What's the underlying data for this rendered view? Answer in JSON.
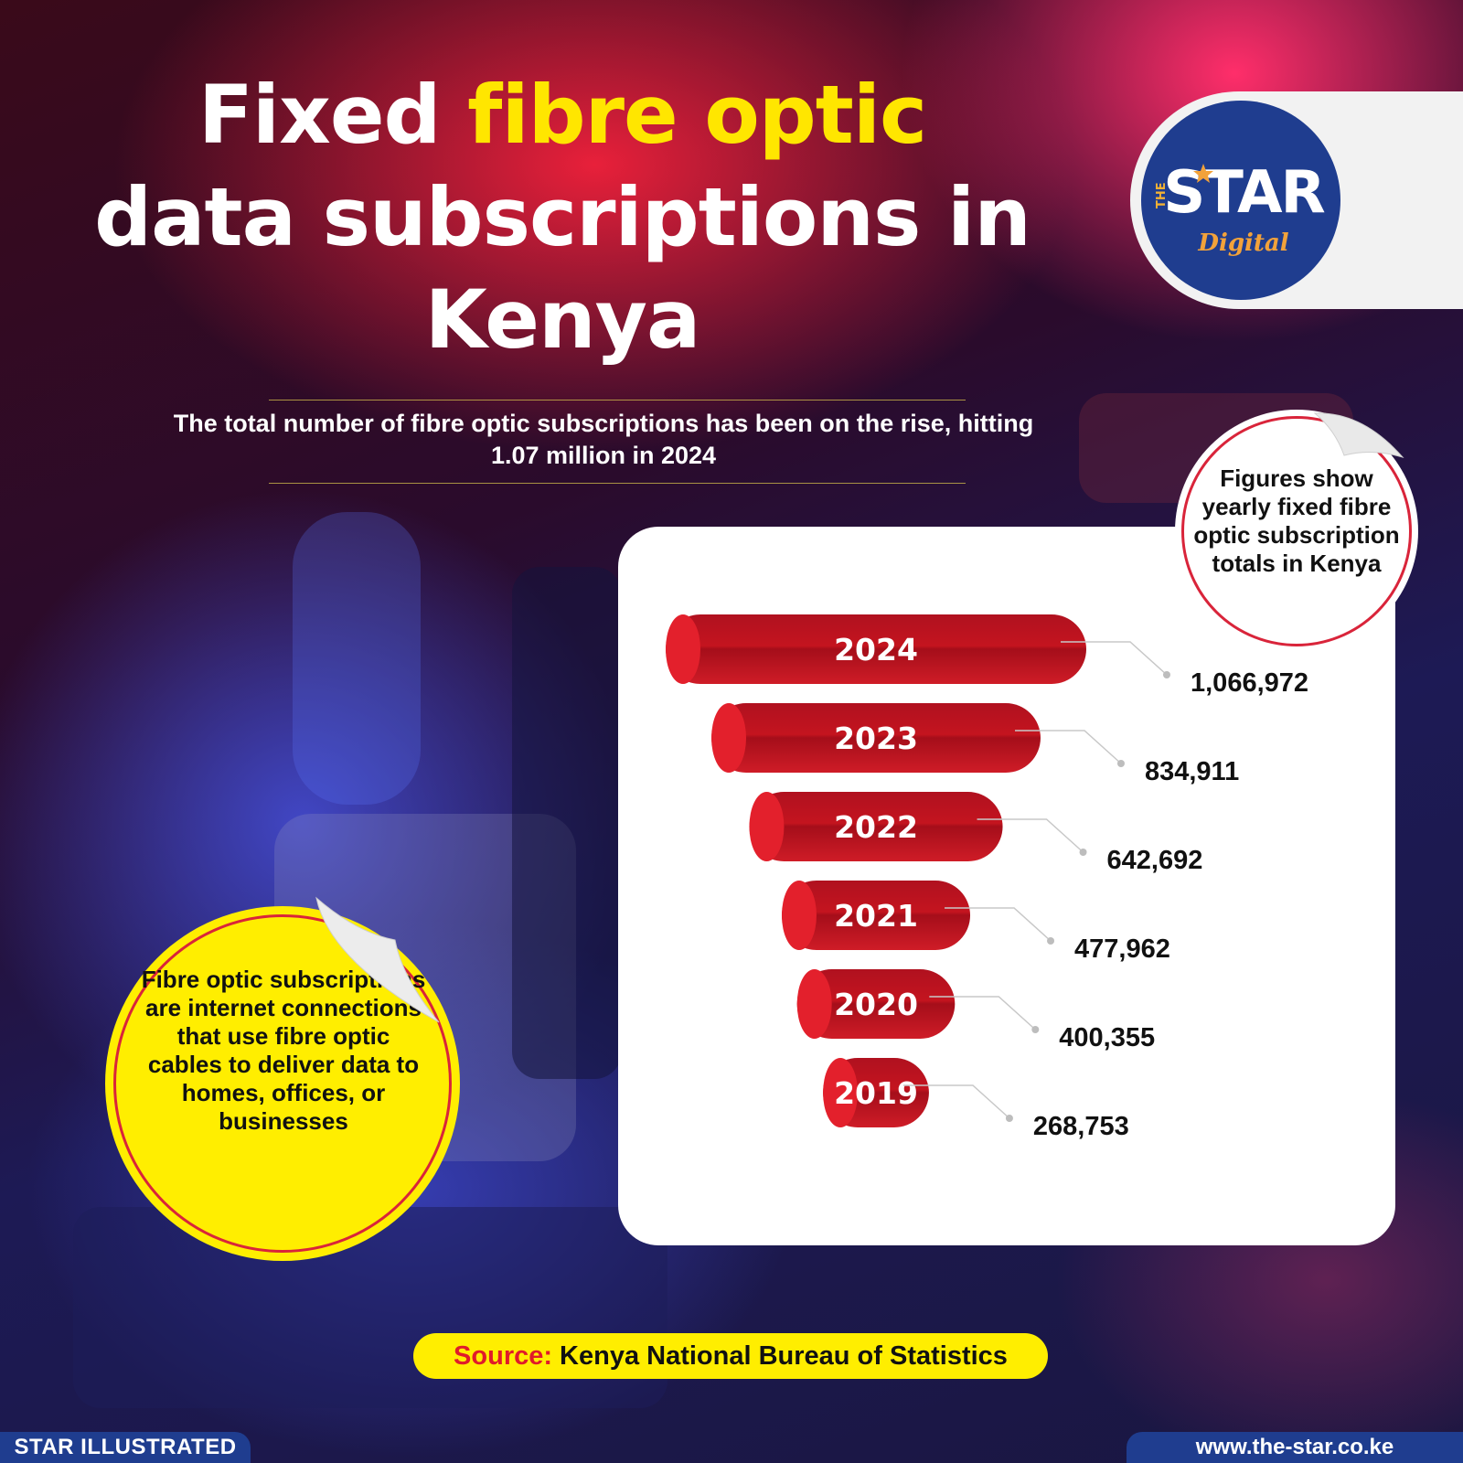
{
  "title": {
    "line1_white": "Fixed ",
    "line1_yellow": "fibre optic",
    "line2": "data subscriptions in",
    "line3": "Kenya"
  },
  "subtitle": "The total number of fibre optic subscriptions has been on the rise, hitting 1.07 million in 2024",
  "logo": {
    "the": "THE",
    "star": "STAR",
    "digital": "Digital"
  },
  "note": "Figures show yearly fixed fibre optic subscription totals in Kenya",
  "definition": "Fibre optic subscriptions are internet connections that use fibre optic cables to deliver data to homes, offices, or businesses",
  "source": {
    "label": "Source:",
    "text": "Kenya National Bureau of Statistics"
  },
  "footer": {
    "left": "STAR ILLUSTRATED",
    "right": "www.the-star.co.ke"
  },
  "colors": {
    "accent_yellow": "#ffe600",
    "bar_red": "#c8102e",
    "brand_blue": "#1f3d8f"
  },
  "chart_data": {
    "type": "bar",
    "orientation": "horizontal",
    "categories": [
      "2024",
      "2023",
      "2022",
      "2021",
      "2020",
      "2019"
    ],
    "values": [
      1066972,
      834911,
      642692,
      477962,
      400355,
      268753
    ],
    "value_labels": [
      "1,066,972",
      "834,911",
      "642,692",
      "477,962",
      "400,355",
      "268,753"
    ],
    "title": "",
    "xlabel": "",
    "ylabel": "",
    "grid": false,
    "legend": "none"
  }
}
